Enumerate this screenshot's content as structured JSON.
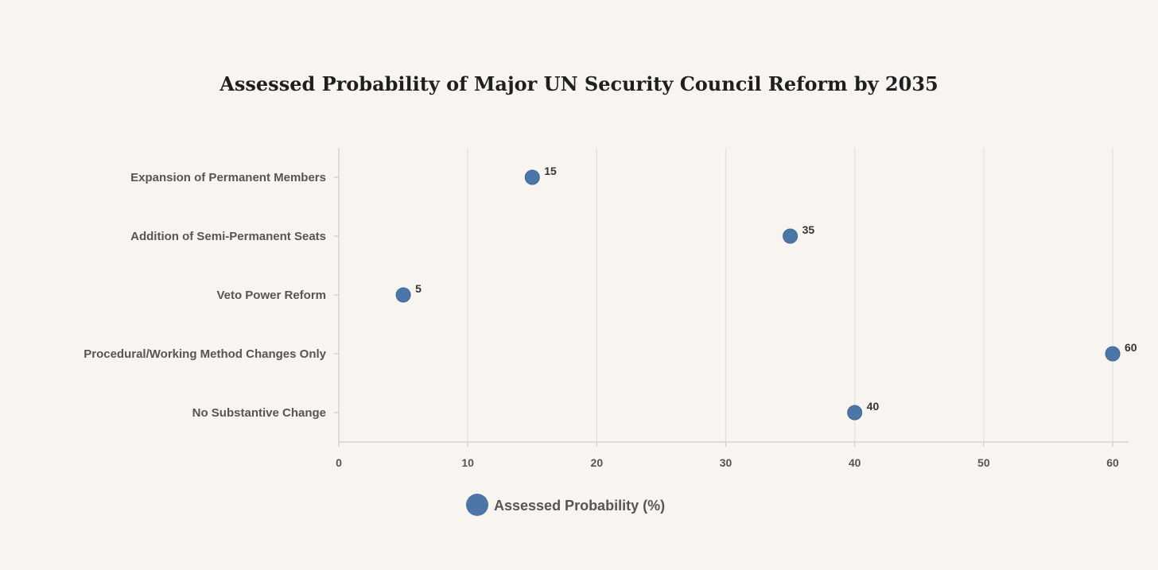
{
  "chart_data": {
    "type": "scatter",
    "title": "Assessed Probability of Major UN Security Council Reform by 2035",
    "categories": [
      "Expansion of Permanent Members",
      "Addition of Semi-Permanent Seats",
      "Veto Power Reform",
      "Procedural/Working Method Changes Only",
      "No Substantive Change"
    ],
    "series": [
      {
        "name": "Assessed Probability (%)",
        "values": [
          15,
          35,
          5,
          60,
          40
        ]
      }
    ],
    "data_labels": [
      "15",
      "35",
      "5",
      "60",
      "40"
    ],
    "xlim": [
      0,
      60
    ],
    "xticks": [
      0,
      10,
      20,
      30,
      40,
      50,
      60
    ],
    "xlabel": "",
    "ylabel": "",
    "grid": "vertical",
    "legend": "bottom-center",
    "marker_color": "#4a76a8"
  }
}
